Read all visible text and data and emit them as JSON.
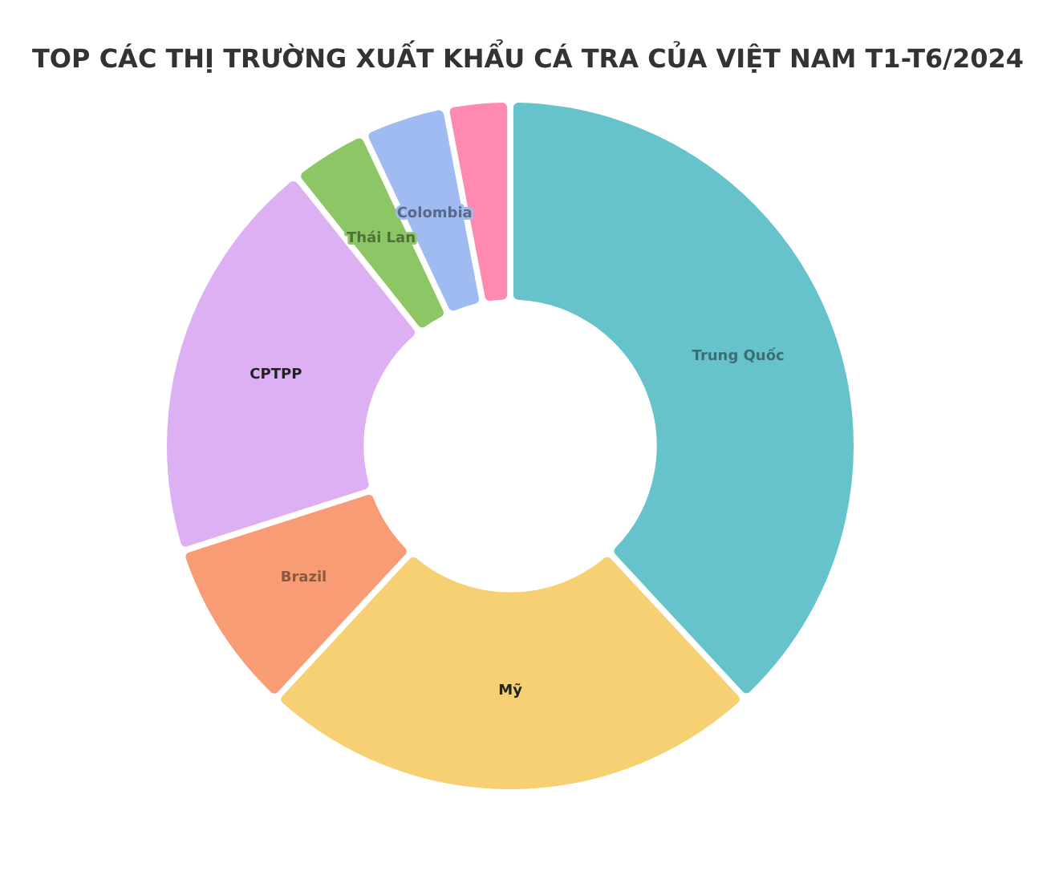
{
  "chart_data": {
    "type": "donut",
    "title": "TOP CÁC THỊ TRƯỜNG XUẤT KHẨU CÁ TRA CỦA VIỆT NAM T1-T6/2024",
    "categories": [
      "Trung Quốc",
      "Mỹ",
      "Brazil",
      "CPTPP",
      "Thái Lan",
      "Colombia",
      null
    ],
    "values": [
      38.3,
      23.9,
      8.1,
      19.3,
      3.6,
      3.9,
      2.9
    ],
    "colors": [
      "#66c3cc",
      "#f6d072",
      "#f79c74",
      "#dcb0f2",
      "#8cc665",
      "#a0baf2",
      "#ff8ab0"
    ]
  }
}
